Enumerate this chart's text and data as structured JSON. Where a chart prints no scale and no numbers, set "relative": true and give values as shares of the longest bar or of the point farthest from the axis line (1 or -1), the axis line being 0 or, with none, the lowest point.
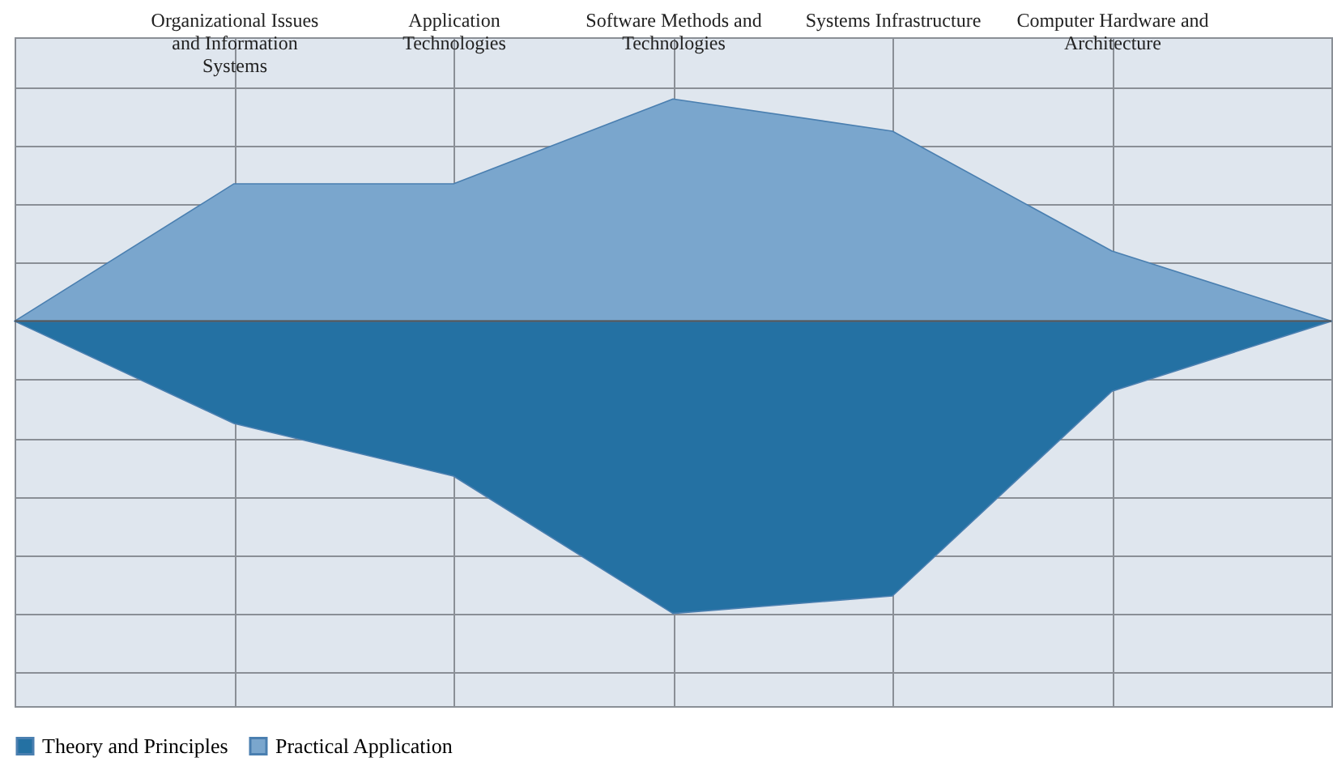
{
  "chart_data": {
    "type": "area",
    "relative": true,
    "grid": true,
    "legend": "bottom",
    "categories": [
      null,
      "Organizational Issues\nand Information\nSystems",
      "Application\nTechnologies",
      "Software Methods and\nTechnologies",
      "Systems Infrastructure",
      "Computer Hardware and\nArchitecture",
      null
    ],
    "series": [
      {
        "name": "Theory and Principles",
        "color": "#2471a3",
        "values": [
          0,
          -0.35,
          -0.53,
          -1,
          -0.94,
          -0.24,
          0
        ]
      },
      {
        "name": "Practical Application",
        "color": "#7aa6cd",
        "values": [
          0,
          0.47,
          0.47,
          0.76,
          0.65,
          0.24,
          0
        ]
      }
    ]
  }
}
